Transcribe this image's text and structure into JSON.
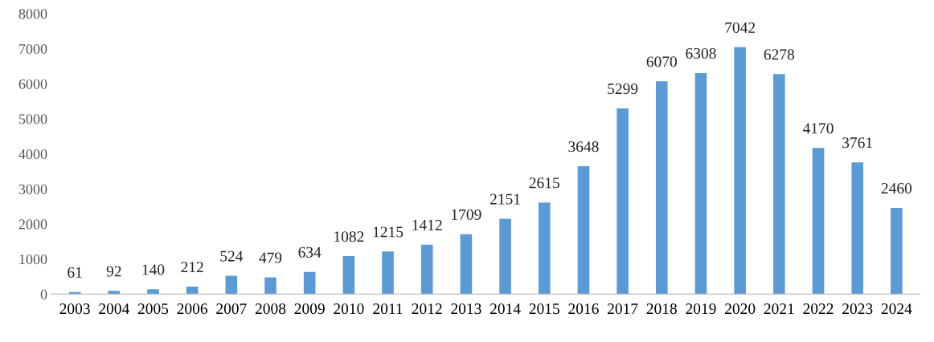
{
  "chart_data": {
    "type": "bar",
    "categories": [
      "2003",
      "2004",
      "2005",
      "2006",
      "2007",
      "2008",
      "2009",
      "2010",
      "2011",
      "2012",
      "2013",
      "2014",
      "2015",
      "2016",
      "2017",
      "2018",
      "2019",
      "2020",
      "2021",
      "2022",
      "2023",
      "2024"
    ],
    "values": [
      61,
      92,
      140,
      212,
      524,
      479,
      634,
      1082,
      1215,
      1412,
      1709,
      2151,
      2615,
      3648,
      5299,
      6070,
      6308,
      7042,
      6278,
      4170,
      3761,
      2460
    ],
    "color": "#5b9bd5",
    "ylim": [
      0,
      8000
    ],
    "yticks": [
      0,
      1000,
      2000,
      3000,
      4000,
      5000,
      6000,
      7000,
      8000
    ],
    "grid": false,
    "data_labels": true
  }
}
